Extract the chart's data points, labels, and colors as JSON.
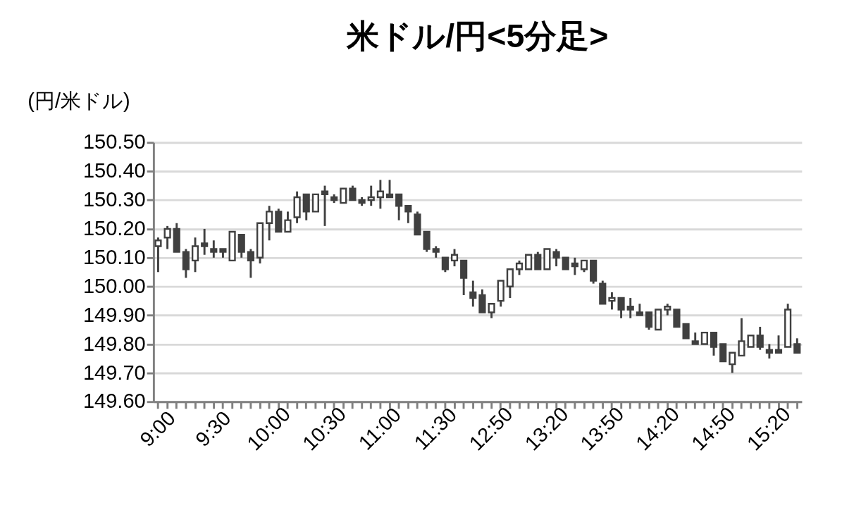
{
  "chart_data": {
    "type": "candlestick",
    "title": "米ドル/円<5分足>",
    "ylabel": "(円/米ドル)",
    "categories": [
      "9:00",
      null,
      null,
      null,
      null,
      null,
      "9:30",
      null,
      null,
      null,
      null,
      null,
      "10:00",
      null,
      null,
      null,
      null,
      null,
      "10:30",
      null,
      null,
      null,
      null,
      null,
      "11:00",
      null,
      null,
      null,
      null,
      null,
      "11:30",
      null,
      null,
      null,
      null,
      null,
      "12:50",
      null,
      null,
      null,
      null,
      null,
      "13:20",
      null,
      null,
      null,
      null,
      null,
      "13:50",
      null,
      null,
      null,
      null,
      null,
      "14:20",
      null,
      null,
      null,
      null,
      null,
      "14:50",
      null,
      null,
      null,
      null,
      null,
      "15:20",
      null,
      null,
      null
    ],
    "ohlc": [
      [
        150.14,
        150.17,
        150.05,
        150.16
      ],
      [
        150.17,
        150.21,
        150.13,
        150.2
      ],
      [
        150.2,
        150.22,
        150.12,
        150.12
      ],
      [
        150.12,
        150.13,
        150.03,
        150.06
      ],
      [
        150.09,
        150.17,
        150.05,
        150.14
      ],
      [
        150.15,
        150.2,
        150.11,
        150.14
      ],
      [
        150.13,
        150.16,
        150.1,
        150.12
      ],
      [
        150.13,
        150.13,
        150.1,
        150.12
      ],
      [
        150.09,
        150.19,
        150.09,
        150.19
      ],
      [
        150.18,
        150.18,
        150.1,
        150.12
      ],
      [
        150.12,
        150.13,
        150.03,
        150.09
      ],
      [
        150.1,
        150.22,
        150.08,
        150.22
      ],
      [
        150.22,
        150.28,
        150.16,
        150.26
      ],
      [
        150.26,
        150.27,
        150.19,
        150.19
      ],
      [
        150.19,
        150.26,
        150.19,
        150.23
      ],
      [
        150.24,
        150.33,
        150.22,
        150.31
      ],
      [
        150.32,
        150.32,
        150.23,
        150.26
      ],
      [
        150.26,
        150.32,
        150.26,
        150.32
      ],
      [
        150.33,
        150.35,
        150.21,
        150.32
      ],
      [
        150.31,
        150.32,
        150.29,
        150.3
      ],
      [
        150.29,
        150.34,
        150.29,
        150.34
      ],
      [
        150.34,
        150.35,
        150.3,
        150.3
      ],
      [
        150.3,
        150.31,
        150.28,
        150.29
      ],
      [
        150.3,
        150.35,
        150.28,
        150.31
      ],
      [
        150.31,
        150.37,
        150.27,
        150.33
      ],
      [
        150.32,
        150.37,
        150.31,
        150.31
      ],
      [
        150.32,
        150.32,
        150.23,
        150.28
      ],
      [
        150.28,
        150.28,
        150.22,
        150.26
      ],
      [
        150.25,
        150.26,
        150.18,
        150.18
      ],
      [
        150.19,
        150.19,
        150.12,
        150.13
      ],
      [
        150.13,
        150.14,
        150.1,
        150.12
      ],
      [
        150.1,
        150.1,
        150.05,
        150.06
      ],
      [
        150.09,
        150.13,
        150.07,
        150.11
      ],
      [
        150.09,
        150.09,
        149.97,
        150.03
      ],
      [
        149.98,
        150.02,
        149.93,
        149.96
      ],
      [
        149.97,
        149.99,
        149.91,
        149.91
      ],
      [
        149.91,
        149.94,
        149.89,
        149.94
      ],
      [
        149.95,
        150.02,
        149.93,
        150.02
      ],
      [
        150.0,
        150.06,
        149.96,
        150.06
      ],
      [
        150.06,
        150.09,
        150.04,
        150.08
      ],
      [
        150.06,
        150.11,
        150.06,
        150.11
      ],
      [
        150.11,
        150.12,
        150.06,
        150.06
      ],
      [
        150.06,
        150.13,
        150.06,
        150.13
      ],
      [
        150.12,
        150.13,
        150.07,
        150.1
      ],
      [
        150.1,
        150.1,
        150.06,
        150.06
      ],
      [
        150.08,
        150.1,
        150.04,
        150.07
      ],
      [
        150.06,
        150.09,
        150.05,
        150.09
      ],
      [
        150.09,
        150.09,
        150.01,
        150.02
      ],
      [
        150.01,
        150.02,
        149.94,
        149.94
      ],
      [
        149.95,
        149.98,
        149.92,
        149.96
      ],
      [
        149.96,
        149.96,
        149.89,
        149.92
      ],
      [
        149.93,
        149.96,
        149.89,
        149.92
      ],
      [
        149.91,
        149.94,
        149.9,
        149.9
      ],
      [
        149.91,
        149.91,
        149.85,
        149.86
      ],
      [
        149.85,
        149.92,
        149.85,
        149.92
      ],
      [
        149.92,
        149.94,
        149.9,
        149.93
      ],
      [
        149.92,
        149.92,
        149.86,
        149.86
      ],
      [
        149.87,
        149.87,
        149.82,
        149.82
      ],
      [
        149.81,
        149.84,
        149.8,
        149.8
      ],
      [
        149.8,
        149.84,
        149.8,
        149.84
      ],
      [
        149.84,
        149.84,
        149.76,
        149.79
      ],
      [
        149.8,
        149.8,
        149.74,
        149.74
      ],
      [
        149.73,
        149.77,
        149.7,
        149.77
      ],
      [
        149.76,
        149.89,
        149.76,
        149.81
      ],
      [
        149.79,
        149.83,
        149.79,
        149.83
      ],
      [
        149.83,
        149.86,
        149.78,
        149.79
      ],
      [
        149.78,
        149.8,
        149.75,
        149.77
      ],
      [
        149.78,
        149.83,
        149.77,
        149.77
      ],
      [
        149.79,
        149.94,
        149.79,
        149.92
      ],
      [
        149.8,
        149.82,
        149.77,
        149.77
      ]
    ],
    "color": "#404040",
    "ylim": [
      149.6,
      150.5
    ],
    "yticks": [
      {
        "value": 149.6,
        "label": "149.60"
      },
      {
        "value": 149.7,
        "label": "149.70"
      },
      {
        "value": 149.8,
        "label": "149.80"
      },
      {
        "value": 149.9,
        "label": "149.90"
      },
      {
        "value": 150.0,
        "label": "150.00"
      },
      {
        "value": 150.1,
        "label": "150.10"
      },
      {
        "value": 150.2,
        "label": "150.20"
      },
      {
        "value": 150.3,
        "label": "150.30"
      },
      {
        "value": 150.4,
        "label": "150.40"
      },
      {
        "value": 150.5,
        "label": "150.50"
      }
    ],
    "grid": "y"
  }
}
